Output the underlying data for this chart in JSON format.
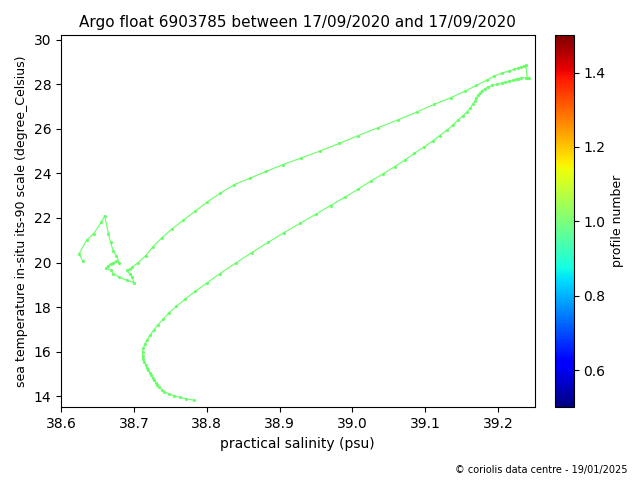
{
  "title": "Argo float 6903785 between 17/09/2020 and 17/09/2020",
  "xlabel": "practical salinity (psu)",
  "ylabel": "sea temperature in-situ its-90 scale (degree_Celsius)",
  "colorbar_label": "profile number",
  "copyright": "© coriolis data centre - 19/01/2025",
  "xlim": [
    38.6,
    39.25
  ],
  "ylim": [
    13.5,
    30.2
  ],
  "xticks": [
    38.6,
    38.7,
    38.8,
    38.9,
    39.0,
    39.1,
    39.2
  ],
  "yticks": [
    14,
    16,
    18,
    20,
    22,
    24,
    26,
    28,
    30
  ],
  "colorbar_ticks": [
    0.6,
    0.8,
    1.0,
    1.2,
    1.4
  ],
  "line_color": "#66ff66",
  "marker_color": "#66ff66",
  "salinity": [
    38.63,
    38.625,
    38.635,
    38.645,
    38.655,
    38.66,
    38.665,
    38.668,
    38.672,
    38.676,
    38.68,
    38.676,
    38.672,
    38.668,
    38.665,
    38.662,
    38.668,
    38.672,
    38.68,
    38.69,
    38.7,
    38.698,
    38.694,
    38.69,
    38.694,
    38.698,
    38.706,
    38.716,
    38.726,
    38.738,
    38.752,
    38.768,
    38.784,
    38.8,
    38.818,
    38.838,
    38.86,
    38.882,
    38.905,
    38.93,
    38.955,
    38.982,
    39.008,
    39.035,
    39.062,
    39.088,
    39.112,
    39.135,
    39.155,
    39.17,
    39.185,
    39.195,
    39.205,
    39.215,
    39.222,
    39.228,
    39.232,
    39.235,
    39.238,
    39.24,
    39.242,
    39.238,
    39.232,
    39.228,
    39.224,
    39.22,
    39.215,
    39.21,
    39.205,
    39.198,
    39.192,
    39.186,
    39.182,
    39.178,
    39.175,
    39.172,
    39.17,
    39.168,
    39.165,
    39.162,
    39.158,
    39.152,
    39.145,
    39.138,
    39.13,
    39.12,
    39.11,
    39.098,
    39.085,
    39.072,
    39.058,
    39.042,
    39.025,
    39.008,
    38.99,
    38.97,
    38.95,
    38.928,
    38.906,
    38.884,
    38.862,
    38.84,
    38.818,
    38.8,
    38.784,
    38.77,
    38.758,
    38.748,
    38.74,
    38.733,
    38.727,
    38.722,
    38.718,
    38.715,
    38.713,
    38.712,
    38.712,
    38.713,
    38.714,
    38.716,
    38.718,
    38.72,
    38.722,
    38.724,
    38.726,
    38.728,
    38.73,
    38.732,
    38.735,
    38.738,
    38.742,
    38.748,
    38.755,
    38.763,
    38.772,
    38.782
  ],
  "temperature": [
    20.05,
    20.4,
    21.0,
    21.3,
    21.8,
    22.1,
    21.3,
    20.9,
    20.5,
    20.3,
    20.0,
    20.05,
    20.0,
    19.95,
    19.85,
    19.75,
    19.65,
    19.5,
    19.35,
    19.2,
    19.1,
    19.35,
    19.5,
    19.65,
    19.7,
    19.8,
    20.0,
    20.3,
    20.7,
    21.1,
    21.5,
    21.9,
    22.3,
    22.7,
    23.1,
    23.5,
    23.8,
    24.1,
    24.4,
    24.7,
    25.0,
    25.35,
    25.7,
    26.05,
    26.4,
    26.75,
    27.1,
    27.4,
    27.7,
    27.95,
    28.2,
    28.38,
    28.5,
    28.6,
    28.68,
    28.74,
    28.78,
    28.82,
    28.85,
    28.3,
    28.3,
    28.3,
    28.28,
    28.25,
    28.22,
    28.18,
    28.14,
    28.1,
    28.05,
    28.0,
    27.95,
    27.88,
    27.8,
    27.72,
    27.62,
    27.5,
    27.38,
    27.25,
    27.1,
    26.95,
    26.78,
    26.6,
    26.4,
    26.18,
    25.95,
    25.7,
    25.45,
    25.18,
    24.9,
    24.6,
    24.3,
    23.98,
    23.65,
    23.3,
    22.94,
    22.56,
    22.17,
    21.76,
    21.34,
    20.9,
    20.45,
    19.98,
    19.5,
    19.08,
    18.7,
    18.35,
    18.03,
    17.73,
    17.45,
    17.2,
    16.96,
    16.73,
    16.52,
    16.33,
    16.15,
    15.98,
    15.82,
    15.67,
    15.53,
    15.4,
    15.28,
    15.16,
    15.05,
    14.94,
    14.83,
    14.72,
    14.61,
    14.5,
    14.4,
    14.3,
    14.2,
    14.1,
    14.02,
    13.95,
    13.88,
    13.82
  ],
  "profile_value": 1.0,
  "cbar_vmin": 0.5,
  "cbar_vmax": 1.5
}
